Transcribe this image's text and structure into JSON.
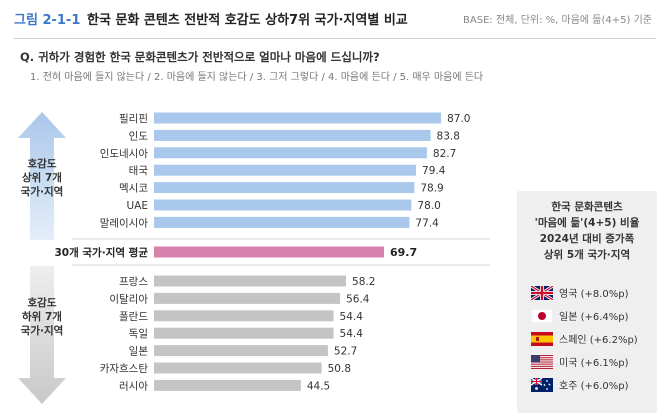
{
  "header": {
    "figure_number": "그림 2-1-1",
    "title": "한국 문화 콘텐츠 전반적 호감도 상하7위 국가·지역별 비교",
    "base_note": "BASE: 전체, 단위: %, 마음에 듦(4+5) 기준"
  },
  "question": {
    "text": "Q. 귀하가 경험한 한국 문화콘텐츠가 전반적으로 얼마나 마음에 드십니까?",
    "scale": "1. 전혀 마음에 들지 않는다 / 2. 마음에 들지 않는다 / 3. 그저 그렇다 / 4. 마음에 든다 / 5. 매우 마음에 든다"
  },
  "top_group": {
    "label_lines": [
      "호감도",
      "상위 7개",
      "국가·지역"
    ]
  },
  "bottom_group": {
    "label_lines": [
      "호감도",
      "하위 7개",
      "국가·지역"
    ]
  },
  "side_panel": {
    "title_lines": [
      "한국 문화콘텐츠",
      "'마음에 듦'(4+5) 비율",
      "2024년 대비 증가폭",
      "상위 5개 국가·지역"
    ],
    "items": [
      {
        "flag": "uk-flag-icon",
        "text": "영국 (+8.0%p)"
      },
      {
        "flag": "japan-flag-icon",
        "text": "일본 (+6.4%p)"
      },
      {
        "flag": "spain-flag-icon",
        "text": "스페인 (+6.2%p)"
      },
      {
        "flag": "usa-flag-icon",
        "text": "미국 (+6.1%p)"
      },
      {
        "flag": "australia-flag-icon",
        "text": "호주 (+6.0%p)"
      }
    ]
  },
  "chart_data": {
    "type": "bar",
    "orientation": "horizontal",
    "xlim": [
      0,
      100
    ],
    "colors": {
      "top": "#a9c8ec",
      "average": "#d981ad",
      "bottom": "#c4c4c4"
    },
    "top": [
      {
        "label": "필리핀",
        "value": 87.0,
        "display": "87.0"
      },
      {
        "label": "인도",
        "value": 83.8,
        "display": "83.8"
      },
      {
        "label": "인도네시아",
        "value": 82.7,
        "display": "82.7"
      },
      {
        "label": "태국",
        "value": 79.4,
        "display": "79.4"
      },
      {
        "label": "멕시코",
        "value": 78.9,
        "display": "78.9"
      },
      {
        "label": "UAE",
        "value": 78.0,
        "display": "78.0"
      },
      {
        "label": "말레이시아",
        "value": 77.4,
        "display": "77.4"
      }
    ],
    "average": {
      "label": "30개 국가·지역 평균",
      "value": 69.7,
      "display": "69.7"
    },
    "bottom": [
      {
        "label": "프랑스",
        "value": 58.2,
        "display": "58.2"
      },
      {
        "label": "이탈리아",
        "value": 56.4,
        "display": "56.4"
      },
      {
        "label": "폴란드",
        "value": 54.4,
        "display": "54.4"
      },
      {
        "label": "독일",
        "value": 54.4,
        "display": "54.4"
      },
      {
        "label": "일본",
        "value": 52.7,
        "display": "52.7"
      },
      {
        "label": "카자흐스탄",
        "value": 50.8,
        "display": "50.8"
      },
      {
        "label": "러시아",
        "value": 44.5,
        "display": "44.5"
      }
    ]
  }
}
